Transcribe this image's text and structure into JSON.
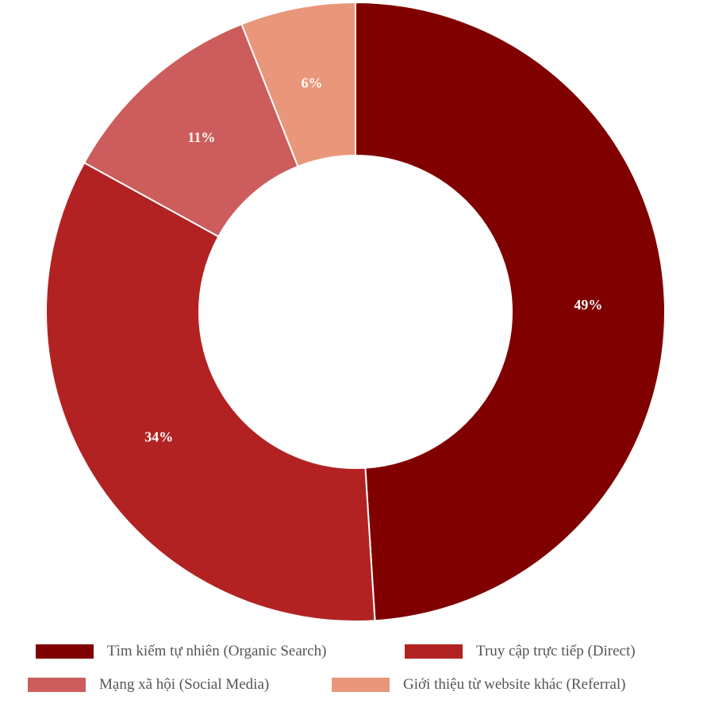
{
  "chart_data": {
    "type": "pie",
    "donut": true,
    "start": "top",
    "direction": "clockwise",
    "categories": [
      "Tìm kiếm tự nhiên (Organic Search)",
      "Truy cập trực tiếp (Direct)",
      "Mạng xã hội (Social Media)",
      "Giới thiệu từ website khác (Referral)"
    ],
    "values": [
      49,
      34,
      11,
      6
    ],
    "data_labels": [
      "49%",
      "34%",
      "11%",
      "6%"
    ],
    "colors": [
      "#800000",
      "#B22222",
      "#CD5C5C",
      "#E9967A"
    ],
    "legend_position": "bottom"
  }
}
